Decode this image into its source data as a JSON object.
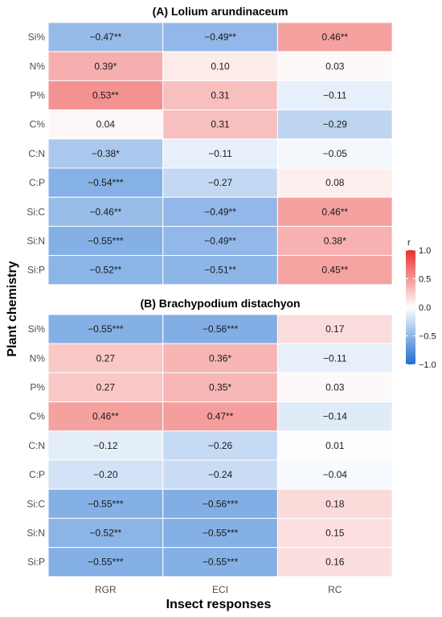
{
  "chart_data": {
    "type": "heatmap",
    "xlabel": "Insect responses",
    "ylabel": "Plant chemistry",
    "columns": [
      "RGR",
      "ECI",
      "RC"
    ],
    "rows": [
      "Si%",
      "N%",
      "P%",
      "C%",
      "C:N",
      "C:P",
      "Si:C",
      "Si:N",
      "Si:P"
    ],
    "legend": {
      "title": "r",
      "min": -1.0,
      "max": 1.0,
      "ticks": [
        "1.0",
        "0.5",
        "0.0",
        "−0.5",
        "−1.0"
      ],
      "tick_values": [
        1.0,
        0.5,
        0.0,
        -0.5,
        -1.0
      ],
      "low_color": "#1f6fd0",
      "mid_color": "#ffffff",
      "high_color": "#e8322f"
    },
    "panels": [
      {
        "title": "(A) Lolium arundinaceum",
        "values": [
          [
            -0.47,
            -0.49,
            0.46
          ],
          [
            0.39,
            0.1,
            0.03
          ],
          [
            0.53,
            0.31,
            -0.11
          ],
          [
            0.04,
            0.31,
            -0.29
          ],
          [
            -0.38,
            -0.11,
            -0.05
          ],
          [
            -0.54,
            -0.27,
            0.08
          ],
          [
            -0.46,
            -0.49,
            0.46
          ],
          [
            -0.55,
            -0.49,
            0.38
          ],
          [
            -0.52,
            -0.51,
            0.45
          ]
        ],
        "labels": [
          [
            "−0.47**",
            "−0.49**",
            "0.46**"
          ],
          [
            "0.39*",
            "0.10",
            "0.03"
          ],
          [
            "0.53**",
            "0.31",
            "−0.11"
          ],
          [
            "0.04",
            "0.31",
            "−0.29"
          ],
          [
            "−0.38*",
            "−0.11",
            "−0.05"
          ],
          [
            "−0.54***",
            "−0.27",
            "0.08"
          ],
          [
            "−0.46**",
            "−0.49**",
            "0.46**"
          ],
          [
            "−0.55***",
            "−0.49**",
            "0.38*"
          ],
          [
            "−0.52**",
            "−0.51**",
            "0.45**"
          ]
        ]
      },
      {
        "title": "(B) Brachypodium distachyon",
        "values": [
          [
            -0.55,
            -0.56,
            0.17
          ],
          [
            0.27,
            0.36,
            -0.11
          ],
          [
            0.27,
            0.35,
            0.03
          ],
          [
            0.46,
            0.47,
            -0.14
          ],
          [
            -0.12,
            -0.26,
            0.01
          ],
          [
            -0.2,
            -0.24,
            -0.04
          ],
          [
            -0.55,
            -0.56,
            0.18
          ],
          [
            -0.52,
            -0.55,
            0.15
          ],
          [
            -0.55,
            -0.55,
            0.16
          ]
        ],
        "labels": [
          [
            "−0.55***",
            "−0.56***",
            "0.17"
          ],
          [
            "0.27",
            "0.36*",
            "−0.11"
          ],
          [
            "0.27",
            "0.35*",
            "0.03"
          ],
          [
            "0.46**",
            "0.47**",
            "−0.14"
          ],
          [
            "−0.12",
            "−0.26",
            "0.01"
          ],
          [
            "−0.20",
            "−0.24",
            "−0.04"
          ],
          [
            "−0.55***",
            "−0.56***",
            "0.18"
          ],
          [
            "−0.52**",
            "−0.55***",
            "0.15"
          ],
          [
            "−0.55***",
            "−0.55***",
            "0.16"
          ]
        ]
      }
    ]
  }
}
